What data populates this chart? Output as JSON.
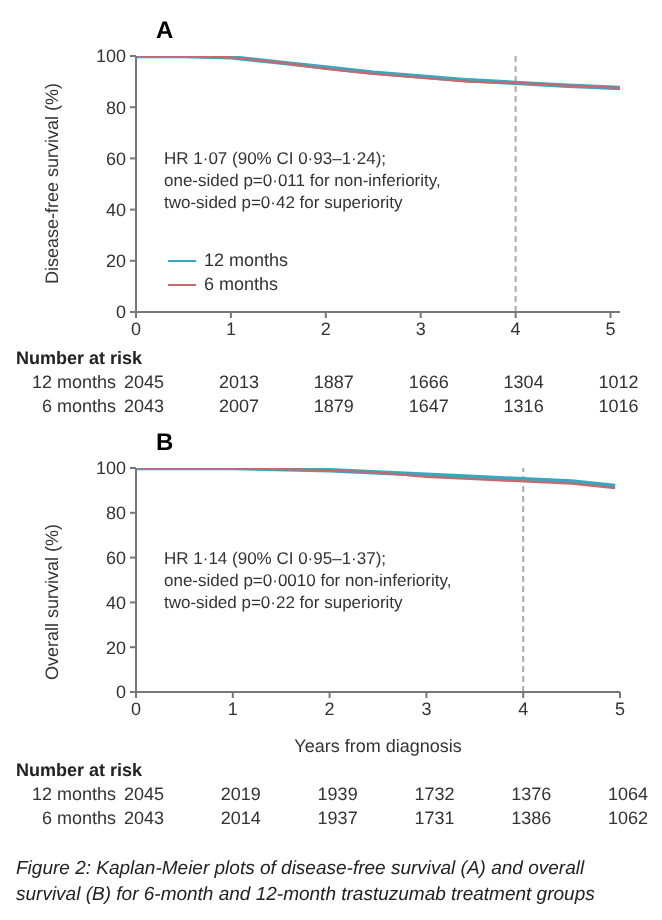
{
  "chart_data": [
    {
      "type": "line",
      "title": "A",
      "ylabel": "Disease-free survival (%)",
      "xlim": [
        0,
        5.1
      ],
      "xticks": [
        0,
        1,
        2,
        3,
        4,
        5
      ],
      "ylim": [
        0,
        100
      ],
      "yticks": [
        0,
        20,
        40,
        60,
        80,
        100
      ],
      "grid": false,
      "legend": "bottom left",
      "marker": "none",
      "ref_lines": [
        {
          "axis": "x",
          "value": 4,
          "color": "#aaaaaa",
          "line_style": "dashed"
        }
      ],
      "series": [
        {
          "name": "12 months",
          "color": "#3ba7bf",
          "x": [
            0,
            0.5,
            1,
            1.5,
            2,
            2.5,
            3,
            3.5,
            4,
            4.5,
            5.1
          ],
          "values": [
            100,
            100,
            99.5,
            97.5,
            95.5,
            93.5,
            92,
            90.5,
            89.5,
            88.5,
            87.5
          ]
        },
        {
          "name": "6 months",
          "color": "#c9676c",
          "x": [
            0,
            0.5,
            1,
            1.5,
            2,
            2.5,
            3,
            3.5,
            4,
            4.5,
            5.1
          ],
          "values": [
            100,
            100,
            99.5,
            97.5,
            95,
            93,
            91.5,
            90,
            89.5,
            88.5,
            87.5
          ]
        }
      ],
      "annotations": [
        "HR 1·07 (90% CI 0·93–1·24);",
        "one-sided p=0·011 for non-inferiority,",
        "two-sided p=0·42 for superiority",
        "Number at risk",
        "12 months",
        "2045",
        "2013",
        "1887",
        "1666",
        "1304",
        "1012",
        "6 months",
        "2043",
        "2007",
        "1879",
        "1647",
        "1316",
        "1016"
      ]
    },
    {
      "type": "line",
      "title": "B",
      "xlabel": "Years from diagnosis",
      "ylabel": "Overall survival (%)",
      "xlim": [
        0,
        5
      ],
      "xticks": [
        0,
        1,
        2,
        3,
        4,
        5
      ],
      "ylim": [
        0,
        100
      ],
      "yticks": [
        0,
        20,
        40,
        60,
        80,
        100
      ],
      "grid": false,
      "legend": false,
      "marker": "none",
      "ref_lines": [
        {
          "axis": "x",
          "value": 4,
          "color": "#aaaaaa",
          "line_style": "dashed"
        }
      ],
      "series": [
        {
          "color": "#3ba7bf",
          "x": [
            0,
            1,
            2,
            2.5,
            3,
            3.5,
            4,
            4.5,
            4.95
          ],
          "values": [
            100,
            100,
            99,
            98,
            97,
            96,
            95,
            94,
            92
          ]
        },
        {
          "color": "#c9676c",
          "x": [
            0,
            1,
            2,
            2.5,
            3,
            3.5,
            4,
            4.5,
            4.95
          ],
          "values": [
            100,
            100,
            99,
            98,
            96,
            95,
            94,
            93,
            91
          ]
        }
      ],
      "annotations": [
        "HR 1·14 (90% CI 0·95–1·37);",
        "one-sided p=0·0010 for non-inferiority,",
        "two-sided p=0·22 for superiority",
        "Number at risk",
        "12 months",
        "2045",
        "2019",
        "1939",
        "1732",
        "1376",
        "1064",
        "6 months",
        "2043",
        "2014",
        "1937",
        "1731",
        "1386",
        "1062",
        "Figure 2: Kaplan-Meier plots of disease-free survival (A) and overall survival (B) for 6-month and 12-month trastuzumab treatment groups"
      ]
    }
  ]
}
